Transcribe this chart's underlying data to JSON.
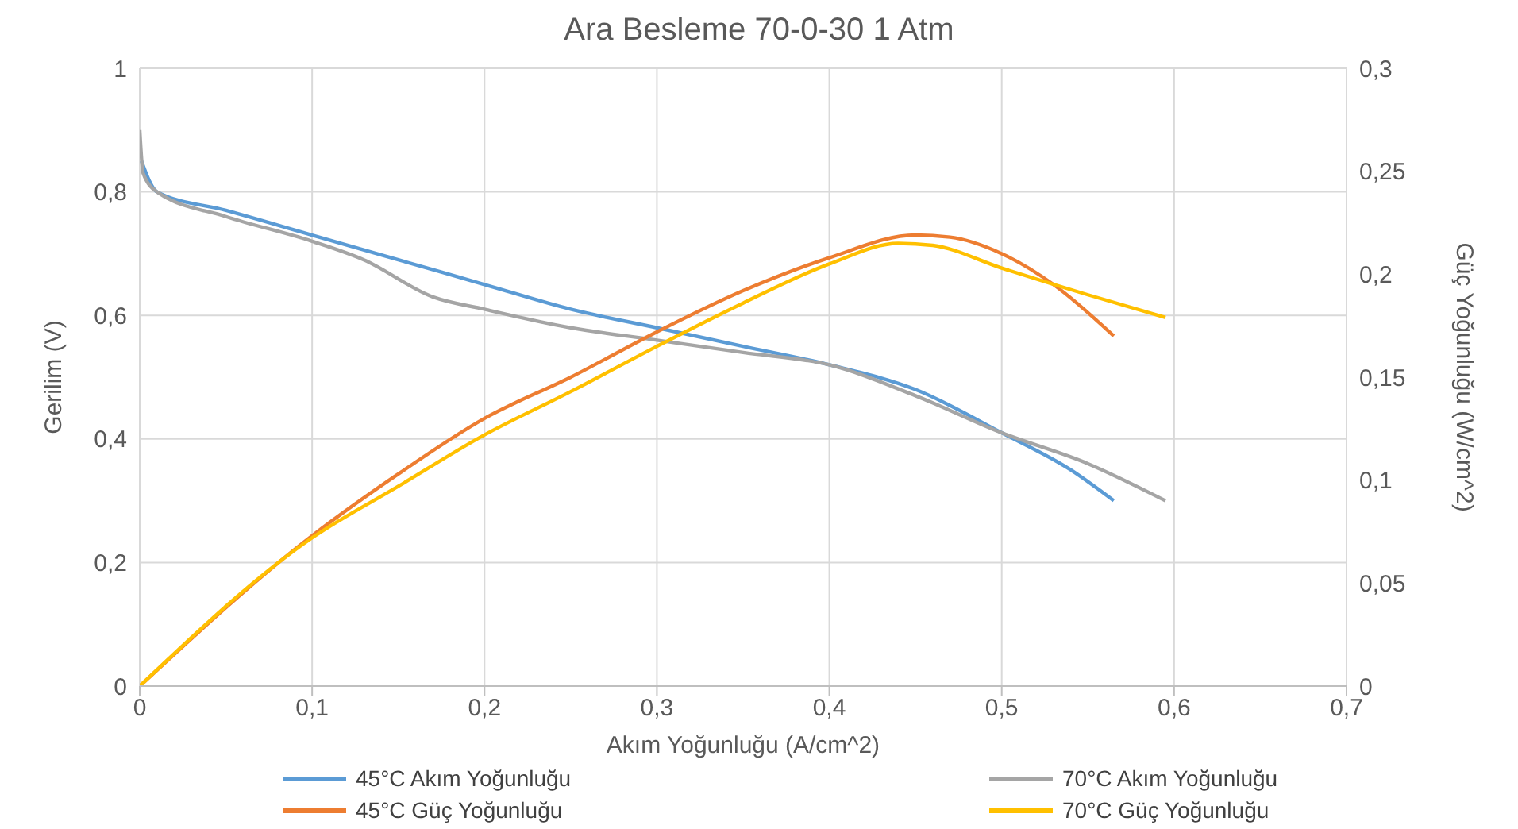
{
  "chart_data": {
    "type": "line",
    "title": "Ara Besleme 70-0-30 1 Atm",
    "xlabel": "Akım Yoğunluğu (A/cm^2)",
    "ylabel": "Gerilim (V)",
    "y2label": "Güç Yoğunluğu (W/cm^2)",
    "xlim": [
      0,
      0.7
    ],
    "xticks": [
      0,
      {
        "value": 0.1,
        "label": "0,1"
      },
      {
        "value": 0.2,
        "label": "0,2"
      },
      {
        "value": 0.3,
        "label": "0,3"
      },
      {
        "value": 0.4,
        "label": "0,4"
      },
      {
        "value": 0.5,
        "label": "0,5"
      },
      {
        "value": 0.6,
        "label": "0,6"
      },
      {
        "value": 0.7,
        "label": "0,7"
      }
    ],
    "ylim": [
      0,
      1
    ],
    "yticks": [
      0,
      {
        "value": 0.2,
        "label": "0,2"
      },
      {
        "value": 0.4,
        "label": "0,4"
      },
      {
        "value": 0.6,
        "label": "0,6"
      },
      {
        "value": 0.8,
        "label": "0,8"
      },
      1
    ],
    "y2lim": [
      0,
      0.3
    ],
    "y2ticks": [
      0,
      {
        "value": 0.05,
        "label": "0,05"
      },
      {
        "value": 0.1,
        "label": "0,1"
      },
      {
        "value": 0.15,
        "label": "0,15"
      },
      {
        "value": 0.2,
        "label": "0,2"
      },
      {
        "value": 0.25,
        "label": "0,25"
      },
      {
        "value": 0.3,
        "label": "0,3"
      }
    ],
    "grid": true,
    "legend": "bottom",
    "marker": "none",
    "line_style": "solid",
    "series": [
      {
        "name": "45°C Akım Yoğunluğu",
        "color": "#5b9bd5",
        "x": [
          0.001,
          0.01,
          0.05,
          0.1,
          0.15,
          0.2,
          0.25,
          0.3,
          0.35,
          0.4,
          0.45,
          0.5,
          0.54,
          0.565
        ],
        "values": [
          0.85,
          0.8,
          0.77,
          0.73,
          0.69,
          0.65,
          0.61,
          0.58,
          0.55,
          0.52,
          0.48,
          0.41,
          0.35,
          0.3
        ]
      },
      {
        "name": "70°C Akım Yoğunluğu",
        "color": "#a5a5a5",
        "x": [
          0,
          0.002,
          0.01,
          0.05,
          0.1,
          0.13,
          0.17,
          0.2,
          0.25,
          0.3,
          0.35,
          0.4,
          0.45,
          0.5,
          0.55,
          0.595
        ],
        "values": [
          0.9,
          0.83,
          0.8,
          0.76,
          0.72,
          0.69,
          0.63,
          0.61,
          0.58,
          0.56,
          0.54,
          0.52,
          0.47,
          0.41,
          0.36,
          0.3
        ]
      },
      {
        "name": "45°C Güç Yoğunluğu",
        "color": "#ed7d31",
        "axis": "y2",
        "x": [
          0,
          0.1,
          0.15,
          0.2,
          0.25,
          0.3,
          0.35,
          0.4,
          0.45,
          0.47,
          0.5,
          0.53,
          0.565
        ],
        "values": [
          0,
          0.073,
          0.103,
          0.13,
          0.15,
          0.172,
          0.192,
          0.208,
          0.219,
          0.218,
          0.21,
          0.195,
          0.17
        ]
      },
      {
        "name": "70°C Güç Yoğunluğu",
        "color": "#ffc000",
        "axis": "y2",
        "x": [
          0,
          0.1,
          0.15,
          0.2,
          0.25,
          0.3,
          0.35,
          0.4,
          0.44,
          0.46,
          0.5,
          0.55,
          0.595
        ],
        "values": [
          0,
          0.072,
          0.097,
          0.122,
          0.143,
          0.165,
          0.186,
          0.205,
          0.215,
          0.214,
          0.203,
          0.19,
          0.179
        ]
      }
    ]
  }
}
